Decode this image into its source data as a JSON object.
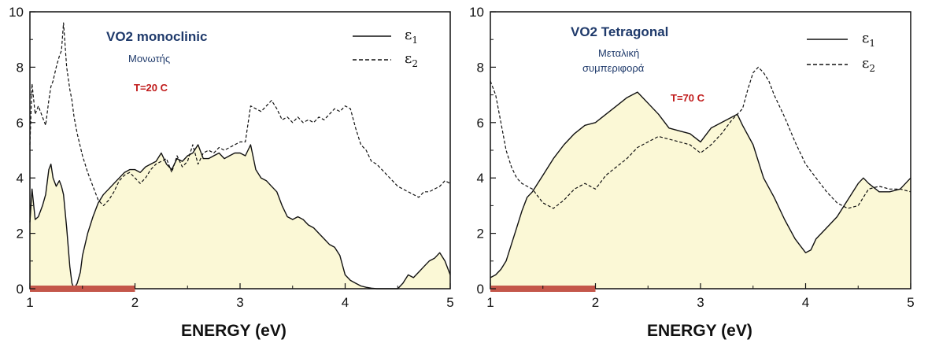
{
  "chart_data": [
    {
      "type": "line",
      "title": "VO2 monoclinic",
      "subtitle": "Μονωτής",
      "annotation": "T=20 C",
      "xlabel": "ENERGY (eV)",
      "ylabel": "",
      "xlim": [
        1,
        5
      ],
      "ylim": [
        0,
        10
      ],
      "xticks": [
        "1",
        "2",
        "3",
        "4",
        "5"
      ],
      "yticks": [
        "0",
        "2",
        "4",
        "6",
        "8",
        "10"
      ],
      "legend": [
        {
          "symbol": "ε",
          "sub": "1",
          "style": "solid"
        },
        {
          "symbol": "ε",
          "sub": "2",
          "style": "dashed"
        }
      ],
      "highlight_range": [
        1,
        2
      ],
      "series": [
        {
          "name": "ε1",
          "style": "solid",
          "filled": true,
          "x": [
            1.0,
            1.02,
            1.05,
            1.08,
            1.12,
            1.15,
            1.18,
            1.2,
            1.22,
            1.25,
            1.28,
            1.3,
            1.32,
            1.35,
            1.38,
            1.4,
            1.42,
            1.45,
            1.48,
            1.5,
            1.55,
            1.6,
            1.65,
            1.7,
            1.75,
            1.8,
            1.85,
            1.9,
            1.95,
            2.0,
            2.05,
            2.1,
            2.15,
            2.2,
            2.25,
            2.3,
            2.35,
            2.4,
            2.45,
            2.5,
            2.55,
            2.6,
            2.65,
            2.7,
            2.75,
            2.8,
            2.85,
            2.9,
            2.95,
            3.0,
            3.05,
            3.1,
            3.15,
            3.2,
            3.25,
            3.3,
            3.35,
            3.4,
            3.45,
            3.5,
            3.55,
            3.6,
            3.65,
            3.7,
            3.75,
            3.8,
            3.85,
            3.9,
            3.95,
            4.0,
            4.05,
            4.1,
            4.15,
            4.2,
            4.25,
            4.3,
            4.4,
            4.5,
            4.55,
            4.6,
            4.65,
            4.7,
            4.75,
            4.8,
            4.85,
            4.9,
            4.95,
            5.0
          ],
          "y": [
            2.4,
            3.6,
            2.5,
            2.6,
            3.0,
            3.4,
            4.3,
            4.5,
            4.0,
            3.7,
            3.9,
            3.7,
            3.4,
            2.2,
            0.8,
            0.2,
            0.0,
            0.2,
            0.6,
            1.2,
            2.0,
            2.6,
            3.1,
            3.4,
            3.6,
            3.8,
            4.0,
            4.2,
            4.3,
            4.3,
            4.2,
            4.4,
            4.5,
            4.6,
            4.9,
            4.5,
            4.3,
            4.7,
            4.6,
            4.8,
            4.9,
            5.2,
            4.7,
            4.7,
            4.8,
            4.9,
            4.7,
            4.8,
            4.9,
            4.9,
            4.8,
            5.2,
            4.3,
            4.0,
            3.9,
            3.7,
            3.5,
            3.0,
            2.6,
            2.5,
            2.6,
            2.5,
            2.3,
            2.2,
            2.0,
            1.8,
            1.6,
            1.5,
            1.2,
            0.5,
            0.3,
            0.2,
            0.1,
            0.05,
            0.02,
            0.0,
            0.0,
            0.0,
            0.2,
            0.5,
            0.4,
            0.6,
            0.8,
            1.0,
            1.1,
            1.3,
            1.0,
            0.5
          ]
        },
        {
          "name": "ε2",
          "style": "dashed",
          "filled": false,
          "x": [
            1.0,
            1.02,
            1.05,
            1.08,
            1.12,
            1.15,
            1.18,
            1.2,
            1.22,
            1.25,
            1.28,
            1.3,
            1.32,
            1.35,
            1.38,
            1.4,
            1.42,
            1.45,
            1.5,
            1.55,
            1.6,
            1.65,
            1.7,
            1.75,
            1.8,
            1.85,
            1.9,
            1.95,
            2.0,
            2.05,
            2.1,
            2.15,
            2.2,
            2.25,
            2.3,
            2.35,
            2.4,
            2.45,
            2.5,
            2.55,
            2.6,
            2.65,
            2.7,
            2.75,
            2.8,
            2.85,
            2.9,
            2.95,
            3.0,
            3.05,
            3.1,
            3.15,
            3.2,
            3.25,
            3.3,
            3.35,
            3.4,
            3.45,
            3.5,
            3.55,
            3.6,
            3.65,
            3.7,
            3.75,
            3.8,
            3.85,
            3.9,
            3.95,
            4.0,
            4.05,
            4.1,
            4.15,
            4.2,
            4.25,
            4.3,
            4.35,
            4.4,
            4.45,
            4.5,
            4.55,
            4.6,
            4.65,
            4.7,
            4.75,
            4.8,
            4.85,
            4.9,
            4.95,
            5.0
          ],
          "y": [
            5.2,
            7.4,
            6.3,
            6.6,
            6.2,
            5.9,
            6.8,
            7.3,
            7.5,
            8.0,
            8.4,
            8.6,
            9.6,
            8.0,
            7.2,
            6.8,
            6.2,
            5.6,
            4.8,
            4.2,
            3.7,
            3.2,
            3.0,
            3.2,
            3.5,
            3.9,
            4.1,
            4.2,
            4.0,
            3.8,
            4.0,
            4.3,
            4.5,
            4.6,
            4.7,
            4.2,
            4.8,
            4.4,
            4.6,
            5.2,
            4.5,
            4.9,
            5.0,
            4.9,
            5.1,
            5.0,
            5.1,
            5.2,
            5.3,
            5.3,
            6.6,
            6.5,
            6.4,
            6.6,
            6.8,
            6.5,
            6.1,
            6.2,
            6.0,
            6.2,
            6.0,
            6.1,
            6.0,
            6.2,
            6.1,
            6.3,
            6.5,
            6.4,
            6.6,
            6.5,
            5.8,
            5.2,
            5.0,
            4.6,
            4.5,
            4.3,
            4.1,
            3.9,
            3.7,
            3.6,
            3.5,
            3.4,
            3.3,
            3.5,
            3.5,
            3.6,
            3.7,
            3.9,
            3.8
          ]
        }
      ]
    },
    {
      "type": "line",
      "title": "VO2 Tetragonal",
      "subtitle_lines": [
        "Μεταλική",
        "συμπεριφορά"
      ],
      "annotation": "T=70 C",
      "xlabel": "ENERGY (eV)",
      "ylabel": "",
      "xlim": [
        1,
        5
      ],
      "ylim": [
        0,
        10
      ],
      "xticks": [
        "1",
        "2",
        "3",
        "4",
        "5"
      ],
      "yticks": [
        "0",
        "2",
        "4",
        "6",
        "8",
        "10"
      ],
      "legend": [
        {
          "symbol": "ε",
          "sub": "1",
          "style": "solid"
        },
        {
          "symbol": "ε",
          "sub": "2",
          "style": "dashed"
        }
      ],
      "highlight_range": [
        1,
        2
      ],
      "series": [
        {
          "name": "ε1",
          "style": "solid",
          "filled": true,
          "x": [
            1.0,
            1.05,
            1.1,
            1.15,
            1.2,
            1.25,
            1.3,
            1.35,
            1.4,
            1.5,
            1.6,
            1.7,
            1.8,
            1.9,
            2.0,
            2.1,
            2.2,
            2.3,
            2.4,
            2.5,
            2.6,
            2.7,
            2.8,
            2.9,
            3.0,
            3.1,
            3.2,
            3.3,
            3.35,
            3.4,
            3.5,
            3.6,
            3.7,
            3.8,
            3.9,
            4.0,
            4.05,
            4.1,
            4.2,
            4.3,
            4.4,
            4.5,
            4.55,
            4.6,
            4.7,
            4.8,
            4.9,
            5.0
          ],
          "y": [
            0.4,
            0.5,
            0.7,
            1.0,
            1.6,
            2.2,
            2.8,
            3.3,
            3.5,
            4.1,
            4.7,
            5.2,
            5.6,
            5.9,
            6.0,
            6.3,
            6.6,
            6.9,
            7.1,
            6.7,
            6.3,
            5.8,
            5.7,
            5.6,
            5.3,
            5.8,
            6.0,
            6.2,
            6.3,
            5.9,
            5.2,
            4.0,
            3.3,
            2.5,
            1.8,
            1.3,
            1.4,
            1.8,
            2.2,
            2.6,
            3.2,
            3.8,
            4.0,
            3.8,
            3.5,
            3.5,
            3.6,
            4.0
          ]
        },
        {
          "name": "ε2",
          "style": "dashed",
          "filled": false,
          "x": [
            1.0,
            1.05,
            1.1,
            1.15,
            1.2,
            1.25,
            1.3,
            1.4,
            1.5,
            1.6,
            1.7,
            1.8,
            1.9,
            2.0,
            2.1,
            2.2,
            2.3,
            2.4,
            2.5,
            2.6,
            2.7,
            2.8,
            2.9,
            3.0,
            3.1,
            3.2,
            3.3,
            3.4,
            3.45,
            3.5,
            3.55,
            3.6,
            3.65,
            3.7,
            3.8,
            3.9,
            4.0,
            4.1,
            4.2,
            4.3,
            4.4,
            4.5,
            4.55,
            4.6,
            4.7,
            4.8,
            4.9,
            5.0
          ],
          "y": [
            7.5,
            7.0,
            6.0,
            5.0,
            4.4,
            4.0,
            3.8,
            3.6,
            3.1,
            2.9,
            3.2,
            3.6,
            3.8,
            3.6,
            4.1,
            4.4,
            4.7,
            5.1,
            5.3,
            5.5,
            5.4,
            5.3,
            5.2,
            4.9,
            5.2,
            5.6,
            6.1,
            6.5,
            7.2,
            7.8,
            8.0,
            7.8,
            7.5,
            7.0,
            6.2,
            5.3,
            4.5,
            4.0,
            3.5,
            3.1,
            2.9,
            3.0,
            3.3,
            3.6,
            3.7,
            3.6,
            3.6,
            3.5
          ]
        }
      ]
    }
  ]
}
